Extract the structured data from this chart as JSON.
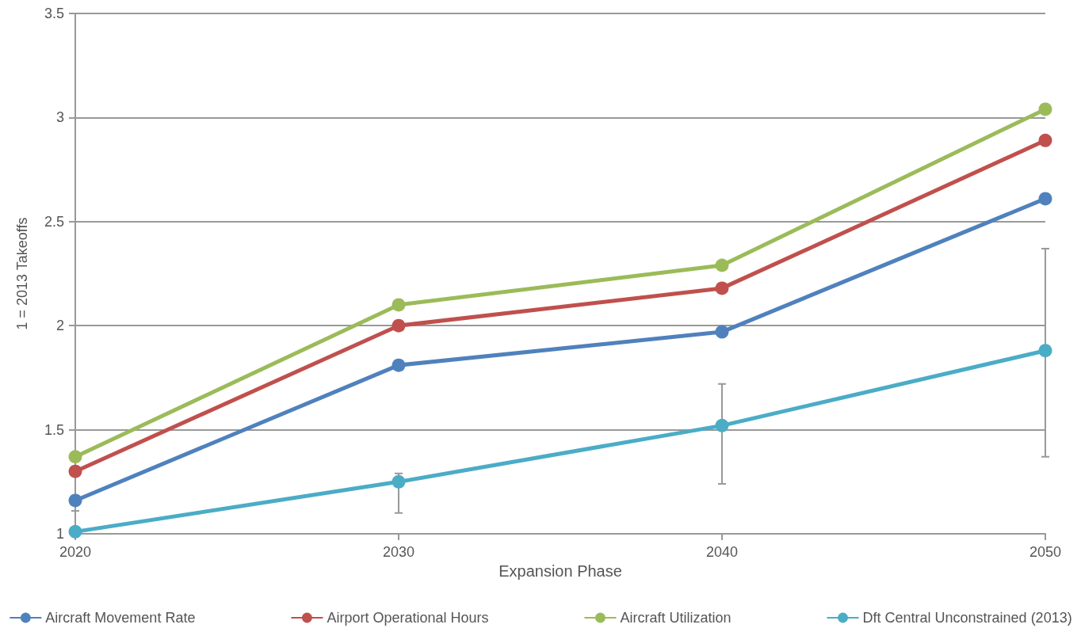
{
  "chart_data": {
    "type": "line",
    "xlabel": "Expansion Phase",
    "ylabel": "1 = 2013 Takeoffs",
    "categories": [
      "2020",
      "2030",
      "2040",
      "2050"
    ],
    "series": [
      {
        "name": "Aircraft Movement Rate",
        "color": "#4f81bd",
        "values": [
          1.16,
          1.81,
          1.97,
          2.61
        ]
      },
      {
        "name": "Airport Operational Hours",
        "color": "#c0504d",
        "values": [
          1.3,
          2.0,
          2.18,
          2.89
        ]
      },
      {
        "name": "Aircraft Utilization",
        "color": "#9bbb59",
        "values": [
          1.37,
          2.1,
          2.29,
          3.04
        ]
      },
      {
        "name": "Dft Central Unconstrained (2013)",
        "color": "#4bacc6",
        "values": [
          1.01,
          1.25,
          1.52,
          1.88
        ],
        "errors": [
          [
            1,
            1.11
          ],
          [
            1.1,
            1.29
          ],
          [
            1.24,
            1.72
          ],
          [
            1.37,
            2.37
          ]
        ]
      }
    ],
    "ylim": [
      1,
      3.5
    ],
    "yticks": [
      1,
      1.5,
      2,
      2.5,
      3,
      3.5
    ],
    "grid": "y",
    "legend": "bottom",
    "marker": "circle",
    "line_style": "solid"
  }
}
